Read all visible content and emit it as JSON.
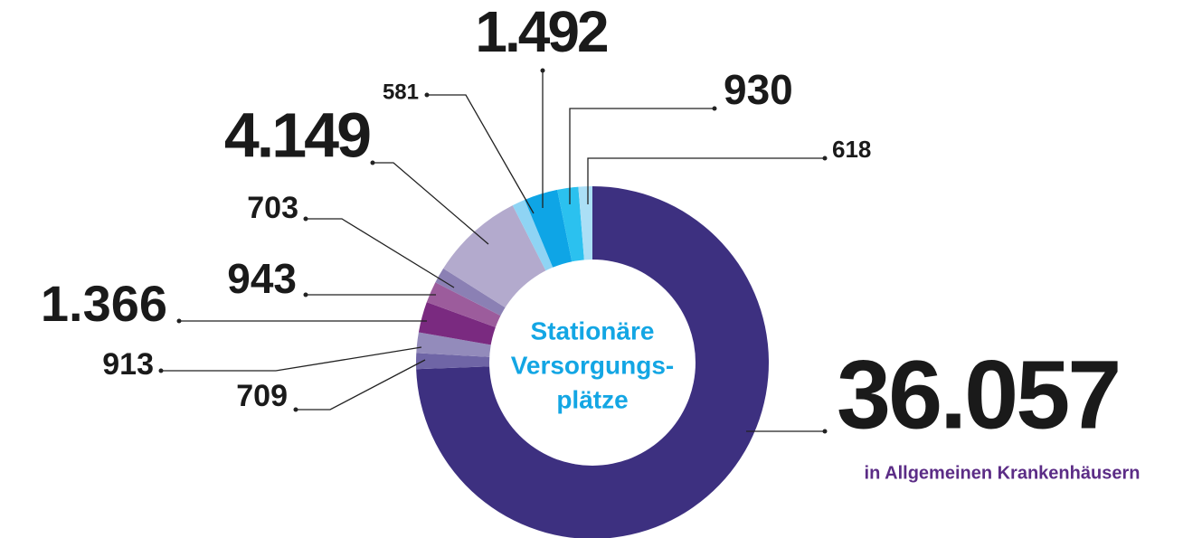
{
  "chart_data": {
    "type": "donut",
    "categories": [
      null,
      null,
      null,
      null,
      null,
      null,
      null,
      null,
      null,
      null,
      null
    ],
    "values": [
      36057,
      709,
      913,
      1366,
      943,
      703,
      4149,
      581,
      1492,
      930,
      618
    ],
    "value_labels": [
      "36.057",
      "709",
      "913",
      "1.366",
      "943",
      "703",
      "4.149",
      "581",
      "1.492",
      "930",
      "618"
    ],
    "colors": [
      "#3d3080",
      "#6f65a6",
      "#938bbb",
      "#7a2a80",
      "#9c5c9c",
      "#8b80b4",
      "#b3aacd",
      "#8fd4f4",
      "#0ea5e6",
      "#2bc1ef",
      "#abdff6"
    ],
    "center_label": [
      "Stationäre",
      "Versorgungs-",
      "plätze"
    ],
    "annotation": "in Allgemeinen Krankenhäusern"
  }
}
